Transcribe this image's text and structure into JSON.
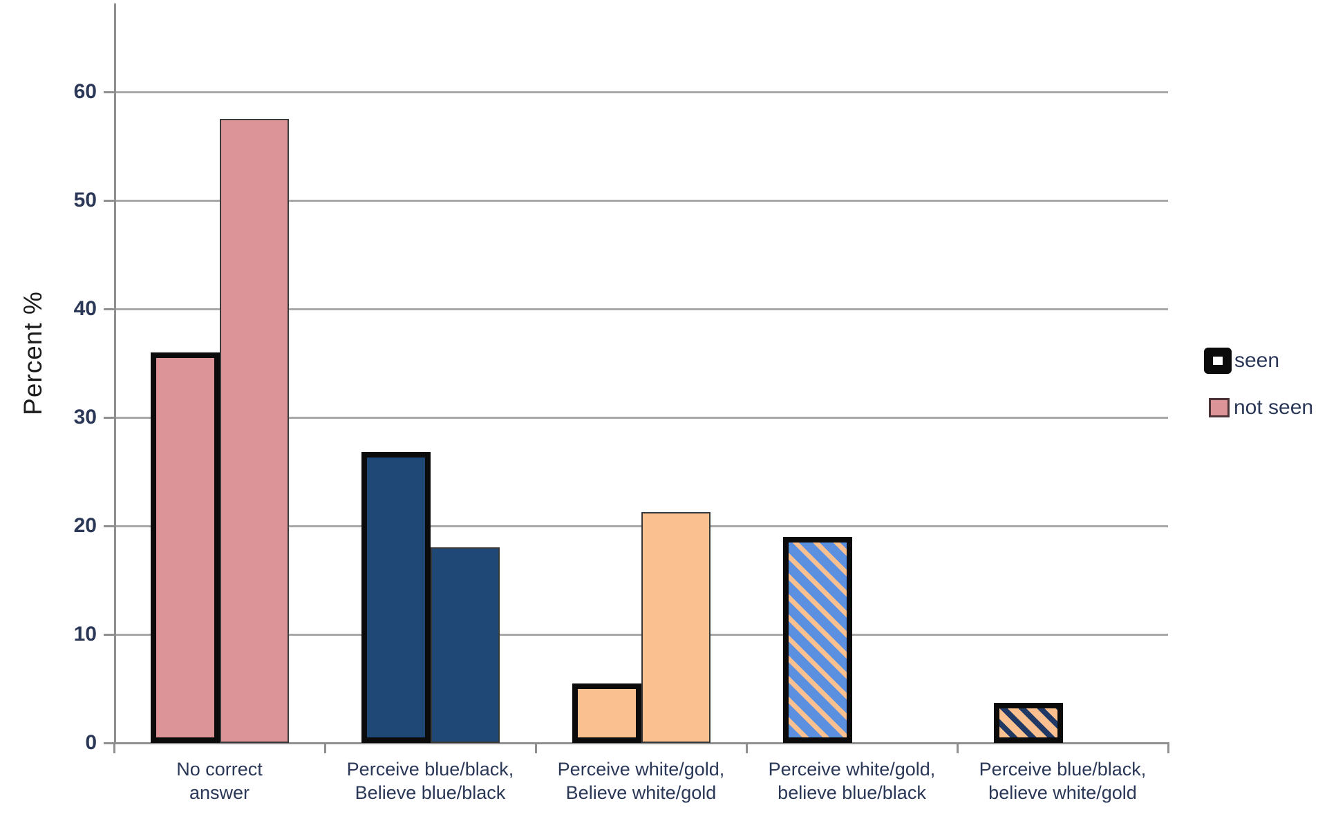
{
  "chart_data": {
    "type": "bar",
    "title": "",
    "ylabel": "Percent %",
    "xlabel": "",
    "ylim": [
      0,
      65
    ],
    "yticks": [
      0,
      10,
      20,
      30,
      40,
      50,
      60
    ],
    "grid": true,
    "legend_position": "right",
    "categories": [
      [
        "No correct",
        "answer"
      ],
      [
        "Perceive blue/black,",
        "Believe blue/black"
      ],
      [
        "Perceive white/gold,",
        "Believe white/gold"
      ],
      [
        "Perceive white/gold,",
        "believe blue/black"
      ],
      [
        "Perceive blue/black,",
        "believe white/gold"
      ]
    ],
    "series": [
      {
        "name": "seen",
        "values": [
          36,
          26.8,
          5.5,
          19,
          3.7
        ],
        "border": "thick-black",
        "fills": [
          "pink",
          "darkblue",
          "orange",
          "stripe-blue-orange",
          "stripe-orange-navy"
        ]
      },
      {
        "name": "not seen",
        "values": [
          57.5,
          18,
          21.3,
          null,
          null
        ],
        "border": "thin-dark",
        "fills": [
          "pink",
          "darkblue",
          "orange",
          null,
          null
        ]
      }
    ]
  },
  "colors": {
    "pink": "#DD9498",
    "darkblue": "#1F4876",
    "orange": "#FAC090",
    "stripe_blue": "#5B8FE0",
    "stripe_navy": "#1F3864",
    "gridline": "#a8a8a8",
    "axis": "#8f8f8f",
    "tick_label": "#2a3756"
  },
  "legend": {
    "items": [
      {
        "label": "seen"
      },
      {
        "label": "not seen"
      }
    ]
  },
  "axis": {
    "y_title": "Percent %"
  }
}
